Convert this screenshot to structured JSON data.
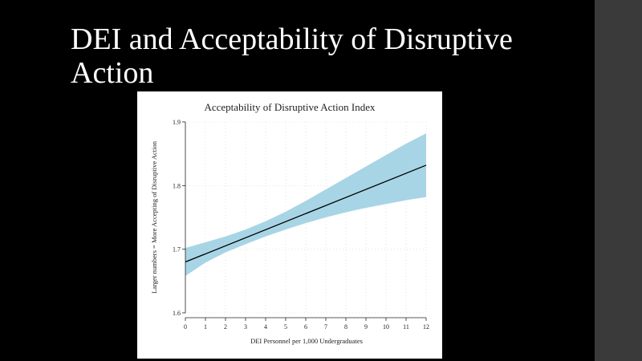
{
  "slide": {
    "title": "DEI and Acceptability of Disruptive Action",
    "colors": {
      "background": "#000000",
      "side_strip": "#3a3a3a",
      "title_text": "#ffffff"
    }
  },
  "chart_data": {
    "type": "line",
    "title": "Acceptability of Disruptive Action Index",
    "xlabel": "DEI Personnel per 1,000 Undergraduates",
    "ylabel": "Larger numbers = More Accepting of Disruptive Action",
    "xlim": [
      0,
      12
    ],
    "ylim": [
      1.6,
      1.9
    ],
    "x_ticks": [
      0,
      1,
      2,
      3,
      4,
      5,
      6,
      7,
      8,
      9,
      10,
      11,
      12
    ],
    "y_ticks": [
      1.6,
      1.7,
      1.8,
      1.9
    ],
    "grid": true,
    "legend": "none",
    "series": [
      {
        "x": [
          0,
          12
        ],
        "y": [
          1.68,
          1.832
        ],
        "color": "#000000"
      }
    ],
    "confidence_band": {
      "x": [
        0,
        1,
        2,
        3,
        4,
        5,
        6,
        7,
        8,
        9,
        10,
        11,
        12
      ],
      "lower": [
        1.658,
        1.679,
        1.695,
        1.708,
        1.72,
        1.731,
        1.741,
        1.75,
        1.758,
        1.765,
        1.771,
        1.777,
        1.782
      ],
      "upper": [
        1.702,
        1.711,
        1.72,
        1.731,
        1.744,
        1.759,
        1.776,
        1.794,
        1.812,
        1.83,
        1.848,
        1.866,
        1.882
      ],
      "color": "#a8d5e5"
    }
  }
}
